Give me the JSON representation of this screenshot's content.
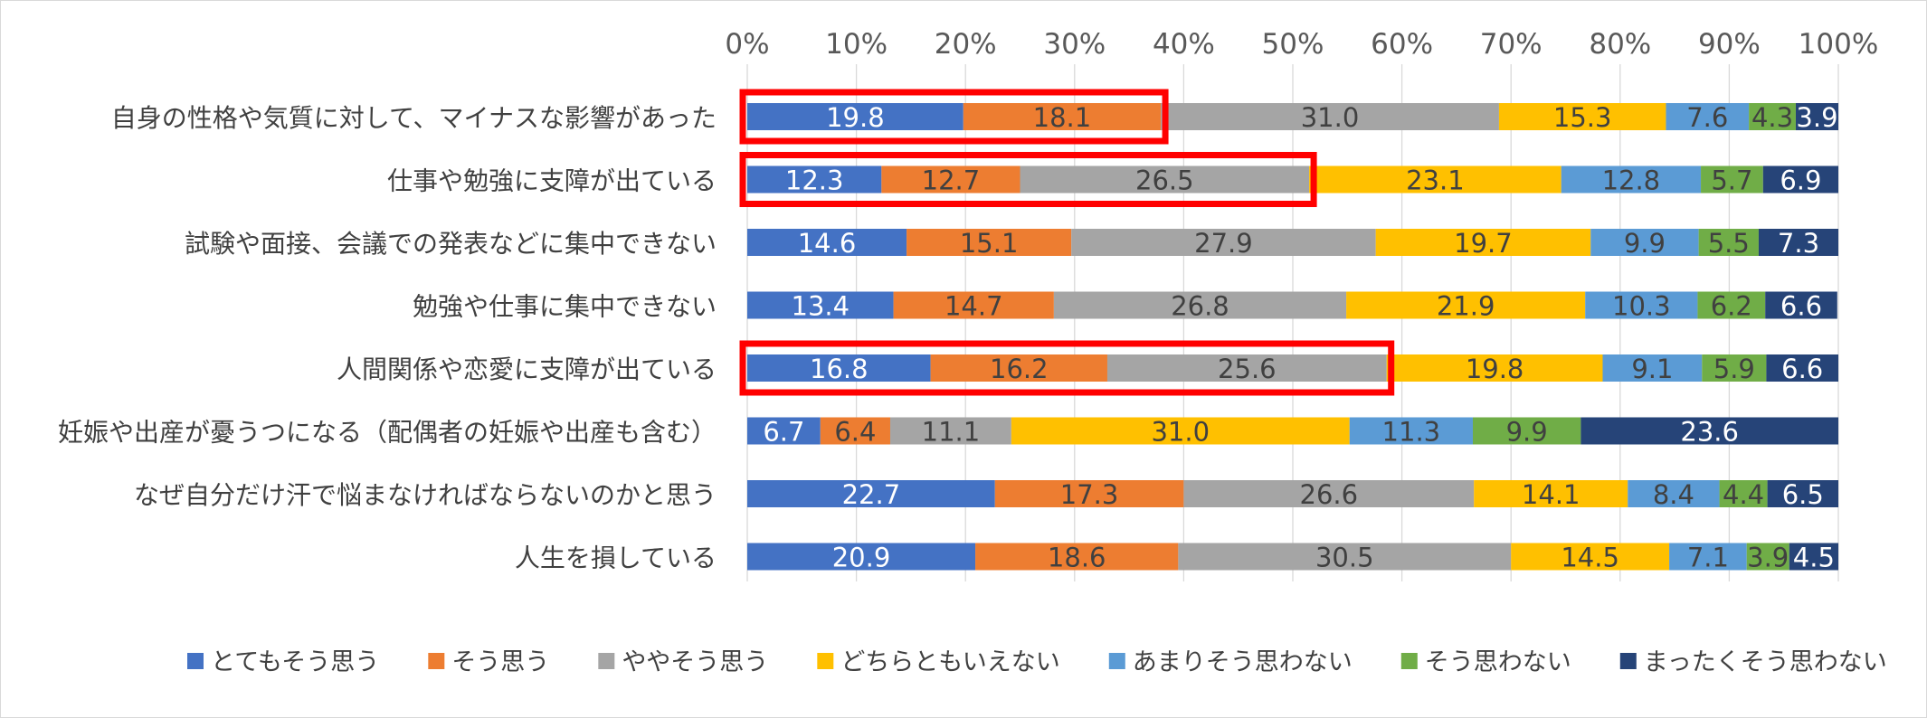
{
  "chart_data": {
    "type": "bar",
    "orientation": "horizontal",
    "stacked": true,
    "percent_stacked": true,
    "x_axis": {
      "ticks": [
        "0%",
        "10%",
        "20%",
        "30%",
        "40%",
        "50%",
        "60%",
        "70%",
        "80%",
        "90%",
        "100%"
      ],
      "range": [
        0,
        100
      ],
      "position": "top"
    },
    "grid": "vertical",
    "legend_position": "bottom",
    "categories": [
      "自身の性格や気質に対して、マイナスな影響があった",
      "仕事や勉強に支障が出ている",
      "試験や面接、会議での発表などに集中できない",
      "勉強や仕事に集中できない",
      "人間関係や恋愛に支障が出ている",
      "妊娠や出産が憂うつになる（配偶者の妊娠や出産も含む）",
      "なぜ自分だけ汗で悩まなければならないのかと思う",
      "人生を損している"
    ],
    "series": [
      {
        "name": "とてもそう思う",
        "color": "#4472C4",
        "label_color": "#ffffff",
        "values": [
          19.8,
          12.3,
          14.6,
          13.4,
          16.8,
          6.7,
          22.7,
          20.9
        ]
      },
      {
        "name": "そう思う",
        "color": "#ED7D31",
        "label_color": "#404040",
        "values": [
          18.1,
          12.7,
          15.1,
          14.7,
          16.2,
          6.4,
          17.3,
          18.6
        ]
      },
      {
        "name": "ややそう思う",
        "color": "#A5A5A5",
        "label_color": "#404040",
        "values": [
          31.0,
          26.5,
          27.9,
          26.8,
          25.6,
          11.1,
          26.6,
          30.5
        ]
      },
      {
        "name": "どちらともいえない",
        "color": "#FFC000",
        "label_color": "#404040",
        "values": [
          15.3,
          23.1,
          19.7,
          21.9,
          19.8,
          31.0,
          14.1,
          14.5
        ]
      },
      {
        "name": "あまりそう思わない",
        "color": "#5B9BD5",
        "label_color": "#404040",
        "values": [
          7.6,
          12.8,
          9.9,
          10.3,
          9.1,
          11.3,
          8.4,
          7.1
        ]
      },
      {
        "name": "そう思わない",
        "color": "#70AD47",
        "label_color": "#404040",
        "values": [
          4.3,
          5.7,
          5.5,
          6.2,
          5.9,
          9.9,
          4.4,
          3.9
        ]
      },
      {
        "name": "まったくそう思わない",
        "color": "#264478",
        "label_color": "#ffffff",
        "values": [
          3.9,
          6.9,
          7.3,
          6.6,
          6.6,
          23.6,
          6.5,
          4.5
        ]
      }
    ],
    "highlights": [
      {
        "category_index": 0,
        "from": 0,
        "to": 37.9,
        "color": "#FF0000"
      },
      {
        "category_index": 1,
        "from": 0,
        "to": 51.5,
        "color": "#FF0000"
      },
      {
        "category_index": 4,
        "from": 0,
        "to": 58.6,
        "color": "#FF0000"
      }
    ]
  }
}
